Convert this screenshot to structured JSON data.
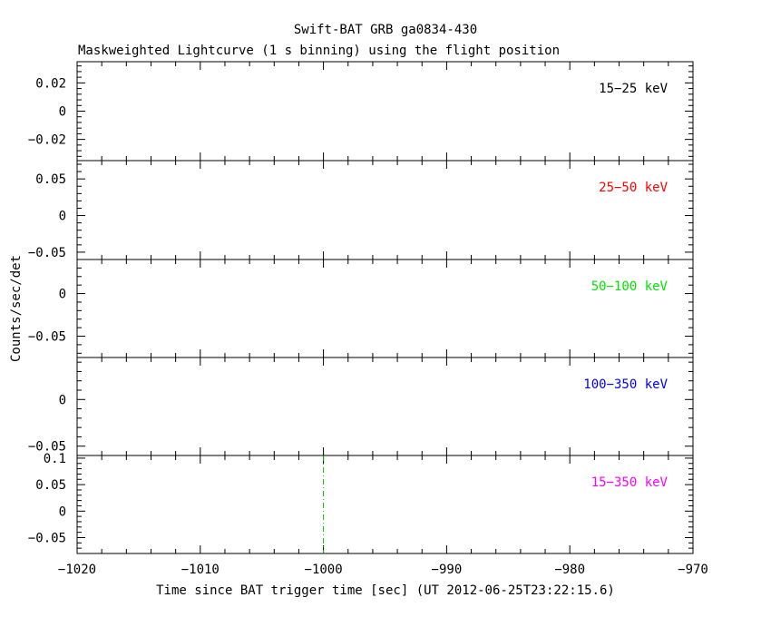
{
  "title": "Swift-BAT GRB ga0834-430",
  "subtitle": "Maskweighted Lightcurve (1 s binning) using the flight position",
  "ylabel": "Counts/sec/det",
  "xlabel": "Time since BAT trigger time [sec] (UT 2012-06-25T23:22:15.6)",
  "chart_data": {
    "type": "line",
    "xlim": [
      -1020,
      -970
    ],
    "x_ticks": [
      -1020,
      -1010,
      -1000,
      -990,
      -980,
      -970
    ],
    "x_tick_labels": [
      "−1020",
      "−1010",
      "−1000",
      "−990",
      "−980",
      "−970"
    ],
    "panels": [
      {
        "band": "15−25 keV",
        "color": "#000000",
        "ylim": [
          -0.035,
          0.035
        ],
        "y_ticks": [
          -0.02,
          0,
          0.02
        ],
        "y_tick_labels": [
          "−0.02",
          "0",
          "0.02"
        ],
        "points": []
      },
      {
        "band": "25−50 keV",
        "color": "#ff0000",
        "ylim": [
          -0.06,
          0.075
        ],
        "y_ticks": [
          -0.05,
          0,
          0.05
        ],
        "y_tick_labels": [
          "−0.05",
          "0",
          "0.05"
        ],
        "points": []
      },
      {
        "band": "50−100 keV",
        "color": "#00e600",
        "ylim": [
          -0.075,
          0.04
        ],
        "y_ticks": [
          -0.05,
          0
        ],
        "y_tick_labels": [
          "−0.05",
          "0"
        ],
        "points": []
      },
      {
        "band": "100−350 keV",
        "color": "#0000ff",
        "ylim": [
          -0.06,
          0.045
        ],
        "y_ticks": [
          -0.05,
          0
        ],
        "y_tick_labels": [
          "−0.05",
          "0"
        ],
        "points": []
      },
      {
        "band": "15−350 keV",
        "color": "#ff00ff",
        "ylim": [
          -0.08,
          0.105
        ],
        "y_ticks": [
          -0.05,
          0,
          0.05,
          0.1
        ],
        "y_tick_labels": [
          "−0.05",
          "0",
          "0.05",
          "0.1"
        ],
        "points": [],
        "trigger_marker": {
          "x": -1000,
          "color": "#00c000"
        }
      }
    ]
  }
}
